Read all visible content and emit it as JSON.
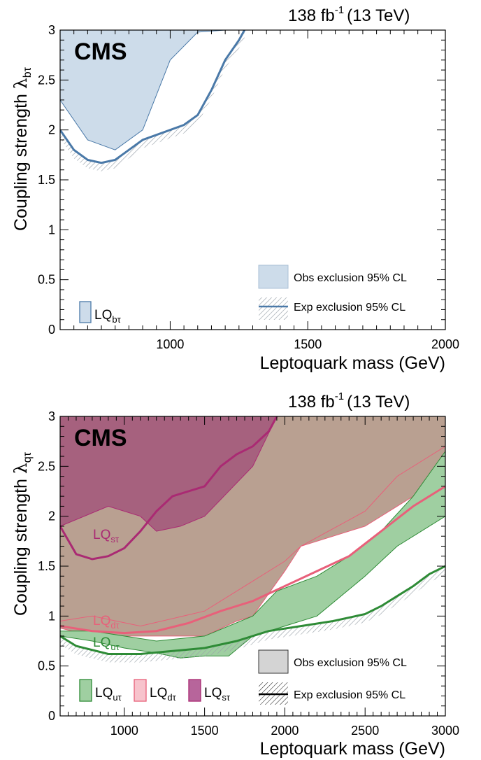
{
  "chart_data": [
    {
      "type": "area",
      "lumi_label": "138 fb",
      "lumi_exp": "-1",
      "lumi_energy": "(13 TeV)",
      "cms_label": "CMS",
      "xlabel": "Leptoquark mass (GeV)",
      "ylabel_main": "Coupling strength ",
      "ylabel_symbol": "λ",
      "ylabel_sub": "bτ",
      "xlim": [
        600,
        2000
      ],
      "ylim": [
        0,
        3
      ],
      "x_ticks": [
        1000,
        1500,
        2000
      ],
      "y_ticks": [
        "0",
        "0.5",
        "1",
        "1.5",
        "2",
        "2.5",
        "3"
      ],
      "legend": {
        "obs_label": "Obs exclusion 95% CL",
        "exp_label": "Exp exclusion 95% CL",
        "placement": "bottom-right"
      },
      "series": [
        {
          "name": "LQbτ",
          "label_main": "LQ",
          "label_sub": "bτ",
          "color": "#4a79a8",
          "fill": "#cddcea",
          "observed": {
            "x": [
              600,
              700,
              800,
              900,
              1000,
              1100,
              1200,
              1260
            ],
            "y": [
              2.3,
              1.9,
              1.8,
              2.0,
              2.7,
              2.98,
              3.0,
              3.0
            ]
          },
          "expected": {
            "x": [
              600,
              650,
              700,
              750,
              800,
              850,
              900,
              1000,
              1050,
              1100,
              1150,
              1200,
              1250,
              1270
            ],
            "y": [
              2.0,
              1.8,
              1.7,
              1.67,
              1.7,
              1.8,
              1.9,
              2.0,
              2.05,
              2.15,
              2.4,
              2.7,
              2.9,
              3.0
            ]
          }
        }
      ]
    },
    {
      "type": "area",
      "lumi_label": "138 fb",
      "lumi_exp": "-1",
      "lumi_energy": "(13 TeV)",
      "cms_label": "CMS",
      "xlabel": "Leptoquark mass (GeV)",
      "ylabel_main": "Coupling strength ",
      "ylabel_symbol": "λ",
      "ylabel_sub": "qτ",
      "xlim": [
        600,
        3000
      ],
      "ylim": [
        0,
        3
      ],
      "x_ticks": [
        1000,
        1500,
        2000,
        2500,
        3000
      ],
      "y_ticks": [
        "0",
        "0.5",
        "1",
        "1.5",
        "2",
        "2.5",
        "3"
      ],
      "legend": {
        "obs_label": "Obs exclusion 95% CL",
        "exp_label": "Exp exclusion 95% CL",
        "placement": "bottom-right"
      },
      "series": [
        {
          "name": "LQdτ",
          "label_main": "LQ",
          "label_sub": "dτ",
          "color": "#e8607a",
          "fill": "#b9a091",
          "observed": {
            "x": [
              600,
              1650,
              1800,
              2000,
              3000
            ],
            "y": [
              3.0,
              3.0,
              3.0,
              3.0,
              3.0
            ]
          },
          "band_low": {
            "x": [
              600,
              800,
              1100,
              1500,
              1700,
              1800,
              2000,
              2100,
              2500,
              2700,
              3000
            ],
            "y": [
              0.88,
              0.8,
              0.8,
              0.8,
              0.95,
              1.0,
              1.45,
              1.7,
              1.9,
              2.1,
              2.4
            ]
          },
          "band_high": {
            "x": [
              600,
              800,
              1100,
              1500,
              1700,
              1800,
              2000,
              2100,
              2500,
              2700,
              3000
            ],
            "y": [
              0.95,
              1.0,
              0.9,
              1.05,
              1.25,
              1.35,
              1.55,
              1.7,
              2.05,
              2.4,
              2.7
            ]
          },
          "expected": {
            "x": [
              600,
              800,
              1000,
              1200,
              1400,
              1600,
              1800,
              2000,
              2200,
              2400,
              2600,
              2800,
              3000
            ],
            "y": [
              0.9,
              0.85,
              0.83,
              0.85,
              0.93,
              1.05,
              1.15,
              1.3,
              1.45,
              1.6,
              1.85,
              2.1,
              2.3
            ]
          }
        },
        {
          "name": "LQuτ",
          "label_main": "LQ",
          "label_sub": "uτ",
          "color": "#2e8b36",
          "fill": "#9fcfa1",
          "band_low": {
            "x": [
              600,
              800,
              1000,
              1200,
              1350,
              1500,
              1650,
              1800,
              2000,
              2200,
              2500,
              2700,
              3000
            ],
            "y": [
              0.8,
              0.75,
              0.68,
              0.63,
              0.58,
              0.6,
              0.6,
              0.8,
              0.9,
              1.0,
              1.4,
              1.7,
              2.0
            ]
          },
          "band_high": {
            "x": [
              600,
              800,
              1000,
              1200,
              1500,
              1800,
              1950,
              2200,
              2400,
              2600,
              2800,
              3000
            ],
            "y": [
              0.85,
              0.85,
              0.8,
              0.75,
              0.8,
              1.0,
              1.25,
              1.4,
              1.6,
              1.85,
              2.2,
              2.65
            ]
          },
          "expected": {
            "x": [
              600,
              700,
              900,
              1100,
              1300,
              1500,
              1700,
              1900,
              2100,
              2300,
              2500,
              2600,
              2700,
              2800,
              2900,
              3000
            ],
            "y": [
              0.8,
              0.7,
              0.62,
              0.62,
              0.65,
              0.68,
              0.75,
              0.85,
              0.9,
              0.95,
              1.02,
              1.1,
              1.2,
              1.3,
              1.42,
              1.5
            ]
          }
        },
        {
          "name": "LQsτ",
          "label_main": "LQ",
          "label_sub": "sτ",
          "color": "#aa2a73",
          "fill": "#a6617e",
          "observed": {
            "x": [
              600,
              900,
              1100,
              1200,
              1350,
              1500,
              1800,
              1950
            ],
            "y": [
              1.9,
              2.1,
              2.0,
              1.85,
              1.9,
              2.0,
              2.5,
              3.0
            ]
          },
          "expected": {
            "x": [
              600,
              700,
              800,
              900,
              1000,
              1100,
              1200,
              1300,
              1400,
              1500,
              1600,
              1700,
              1800,
              1900,
              1950
            ],
            "y": [
              1.9,
              1.62,
              1.57,
              1.6,
              1.68,
              1.85,
              2.05,
              2.2,
              2.25,
              2.3,
              2.5,
              2.62,
              2.7,
              2.85,
              3.0
            ]
          }
        }
      ]
    }
  ]
}
